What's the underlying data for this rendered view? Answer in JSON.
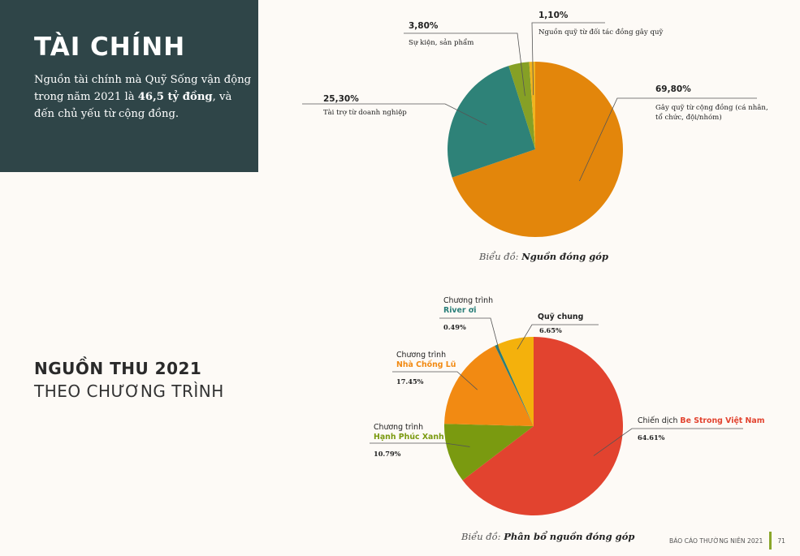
{
  "header": {
    "title": "TÀI CHÍNH",
    "text_pre": "Nguồn tài chính mà Quỹ Sống vận động trong năm 2021 là ",
    "text_bold": "46,5 tỷ đồng",
    "text_post": ", và đến chủ yếu từ cộng đồng."
  },
  "section": {
    "title_line1": "NGUỒN THU 2021",
    "title_line2": "THEO CHƯƠNG TRÌNH"
  },
  "chart_data": [
    {
      "type": "pie",
      "caption_prefix": "Biểu đồ: ",
      "caption_title": "Nguồn đóng góp",
      "slices": [
        {
          "pct_label": "69,80%",
          "value": 69.8,
          "label_lines": [
            "Gây quỹ từ cộng đồng (cá nhân,",
            "tổ chức, đội/nhóm)"
          ],
          "color": "#e3860b"
        },
        {
          "pct_label": "25,30%",
          "value": 25.3,
          "label_lines": [
            "Tài trợ từ doanh nghiệp"
          ],
          "color": "#2e8278"
        },
        {
          "pct_label": "3,80%",
          "value": 3.8,
          "label_lines": [
            "Sự kiện, sản phẩm"
          ],
          "color": "#86a025"
        },
        {
          "pct_label": "1,10%",
          "value": 1.1,
          "label_lines": [
            "Nguồn quỹ từ đối tác đồng gây quỹ"
          ],
          "color": "#f0b41e"
        }
      ]
    },
    {
      "type": "pie",
      "caption_prefix": "Biểu đồ: ",
      "caption_title": "Phân bổ nguồn đóng góp",
      "slices": [
        {
          "pct_label": "64.61%",
          "value": 64.61,
          "prefix": "Chiến dịch ",
          "name": "Be Strong Việt Nam",
          "color": "#e2432f"
        },
        {
          "pct_label": "10.79%",
          "value": 10.79,
          "prefix": "Chương trình",
          "name": "Hạnh Phúc Xanh",
          "color": "#7a9a10"
        },
        {
          "pct_label": "17.45%",
          "value": 17.45,
          "prefix": "Chương trình",
          "name": "Nhà Chống Lũ",
          "color": "#f28a12"
        },
        {
          "pct_label": "0.49%",
          "value": 0.49,
          "prefix": "Chương trình",
          "name": "River ơi",
          "color": "#2a7f7a"
        },
        {
          "pct_label": "6.65%",
          "value": 6.65,
          "prefix": "",
          "name": "Quỹ chung",
          "color": "#f4b10c"
        }
      ]
    }
  ],
  "footer": {
    "report": "BÁO CÁO THƯỜNG NIÊN 2021",
    "page": "71"
  }
}
